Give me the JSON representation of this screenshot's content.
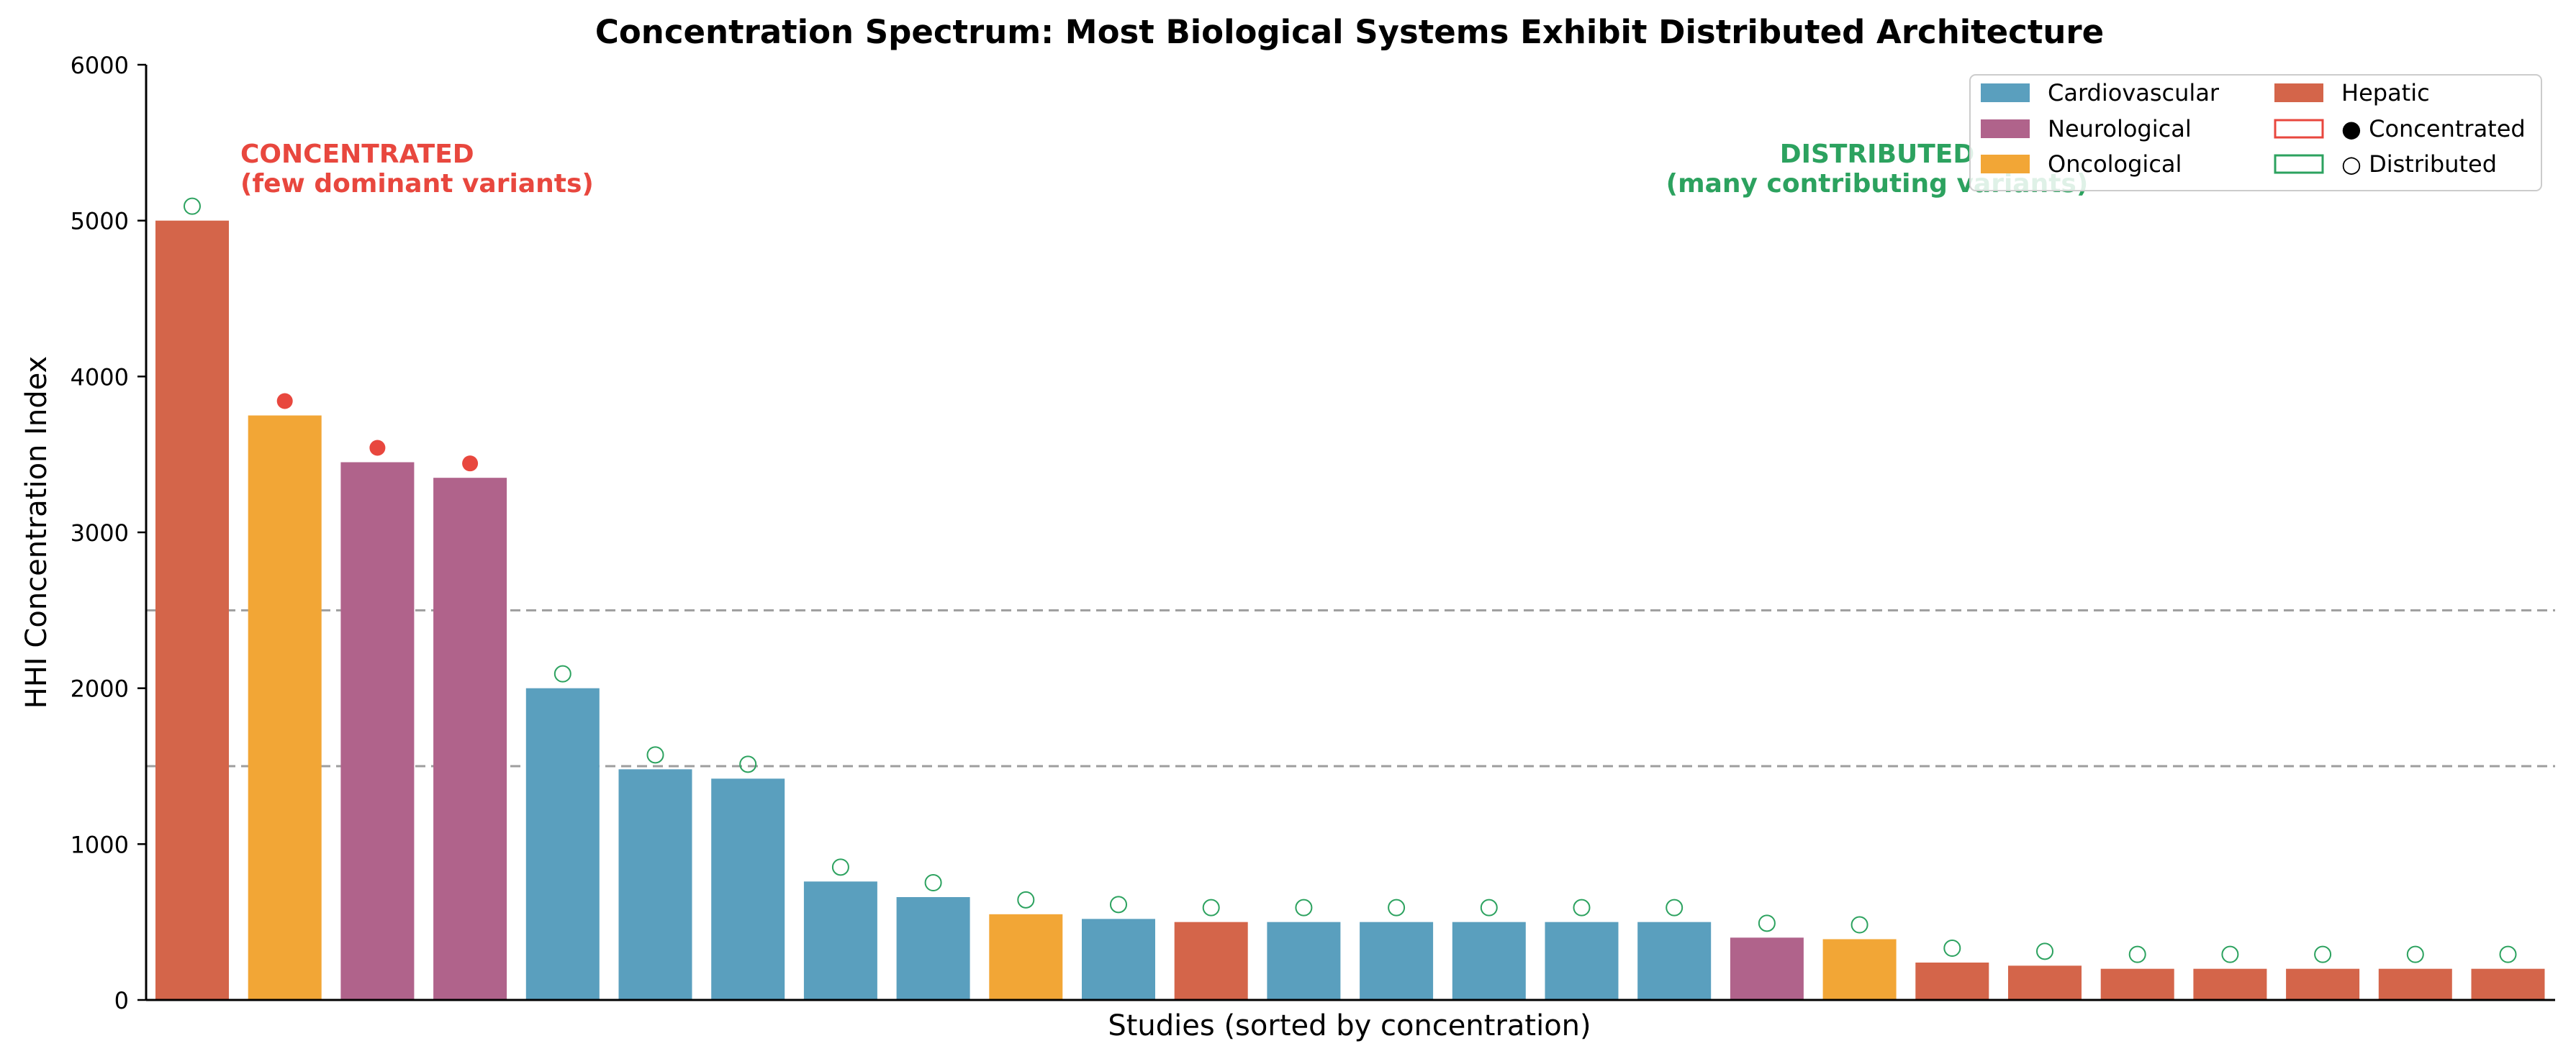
{
  "chart_data": {
    "type": "bar",
    "title": "Concentration Spectrum: Most Biological Systems Exhibit Distributed Architecture",
    "xlabel": "Studies (sorted by concentration)",
    "ylabel": "HHI Concentration Index",
    "ylim": [
      0,
      6000
    ],
    "yticks": [
      "0",
      "1000",
      "2000",
      "3000",
      "4000",
      "5000",
      "6000"
    ],
    "reference_lines": [
      1500,
      2500
    ],
    "colors": {
      "Cardiovascular": "#5a9fbe",
      "Neurological": "#b0638b",
      "Oncological": "#f2a636",
      "Hepatic": "#d4654a",
      "concentrated_marker": "#e8473e",
      "distributed_marker": "#2ca25f",
      "reference_line": "#9e9e9e"
    },
    "bars": [
      {
        "category": "Hepatic",
        "value": 5000,
        "marker": "Distributed"
      },
      {
        "category": "Oncological",
        "value": 3750,
        "marker": "Concentrated"
      },
      {
        "category": "Neurological",
        "value": 3450,
        "marker": "Concentrated"
      },
      {
        "category": "Neurological",
        "value": 3350,
        "marker": "Concentrated"
      },
      {
        "category": "Cardiovascular",
        "value": 2000,
        "marker": "Distributed"
      },
      {
        "category": "Cardiovascular",
        "value": 1480,
        "marker": "Distributed"
      },
      {
        "category": "Cardiovascular",
        "value": 1420,
        "marker": "Distributed"
      },
      {
        "category": "Cardiovascular",
        "value": 760,
        "marker": "Distributed"
      },
      {
        "category": "Cardiovascular",
        "value": 660,
        "marker": "Distributed"
      },
      {
        "category": "Oncological",
        "value": 550,
        "marker": "Distributed"
      },
      {
        "category": "Cardiovascular",
        "value": 520,
        "marker": "Distributed"
      },
      {
        "category": "Hepatic",
        "value": 500,
        "marker": "Distributed"
      },
      {
        "category": "Cardiovascular",
        "value": 500,
        "marker": "Distributed"
      },
      {
        "category": "Cardiovascular",
        "value": 500,
        "marker": "Distributed"
      },
      {
        "category": "Cardiovascular",
        "value": 500,
        "marker": "Distributed"
      },
      {
        "category": "Cardiovascular",
        "value": 500,
        "marker": "Distributed"
      },
      {
        "category": "Cardiovascular",
        "value": 500,
        "marker": "Distributed"
      },
      {
        "category": "Neurological",
        "value": 400,
        "marker": "Distributed"
      },
      {
        "category": "Oncological",
        "value": 390,
        "marker": "Distributed"
      },
      {
        "category": "Hepatic",
        "value": 240,
        "marker": "Distributed"
      },
      {
        "category": "Hepatic",
        "value": 220,
        "marker": "Distributed"
      },
      {
        "category": "Hepatic",
        "value": 200,
        "marker": "Distributed"
      },
      {
        "category": "Hepatic",
        "value": 200,
        "marker": "Distributed"
      },
      {
        "category": "Hepatic",
        "value": 200,
        "marker": "Distributed"
      },
      {
        "category": "Hepatic",
        "value": 200,
        "marker": "Distributed"
      },
      {
        "category": "Hepatic",
        "value": 200,
        "marker": "Distributed"
      }
    ],
    "annotations": {
      "concentrated": [
        "CONCENTRATED",
        "(few dominant variants)"
      ],
      "distributed": [
        "DISTRIBUTED",
        "(many contributing variants)"
      ]
    },
    "legend": {
      "position": "top-right",
      "entries": [
        {
          "label": "Cardiovascular",
          "kind": "patch",
          "color_key": "Cardiovascular"
        },
        {
          "label": "Neurological",
          "kind": "patch",
          "color_key": "Neurological"
        },
        {
          "label": "Oncological",
          "kind": "patch",
          "color_key": "Oncological"
        },
        {
          "label": "Hepatic",
          "kind": "patch",
          "color_key": "Hepatic"
        },
        {
          "label": "● Concentrated",
          "kind": "outline",
          "color_key": "concentrated_marker"
        },
        {
          "label": "○ Distributed",
          "kind": "outline",
          "color_key": "distributed_marker"
        }
      ]
    }
  }
}
